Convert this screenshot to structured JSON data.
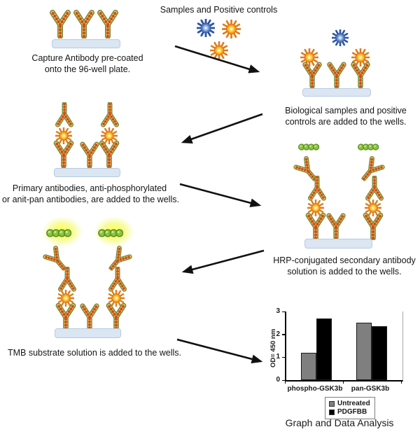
{
  "labels": {
    "samples_header": "Samples and Positive controls"
  },
  "steps": {
    "step1": {
      "line1": "Capture Antibody pre-coated",
      "line2": "onto the 96-well plate."
    },
    "step2": {
      "line1": "Biological samples and positive",
      "line2": "controls are added to the wells."
    },
    "step3": {
      "line1": "Primary antibodies, anti-phosphorylated",
      "line2": "or anit-pan antibodies, are added to the wells."
    },
    "step4": {
      "line1": "HRP-conjugated secondary antibody",
      "line2": "solution is added to the wells."
    },
    "step5": {
      "line1": "TMB substrate solution is added to the wells."
    }
  },
  "icons": {
    "antibody": "Y-shaped antibody (gold/orange beaded)",
    "antigen": "orange sun-burst antigen",
    "positive_control": "blue star antigen",
    "hrp_chain": "green bead chain (HRP enzyme)",
    "substrate_glow": "yellow glow (TMB colorimetric signal)",
    "plate": "96-well plate strip",
    "arrow": "black flow arrow"
  },
  "colors": {
    "plate_fill": "#dbe6f3",
    "plate_border": "#b7cbe2",
    "antibody_gold": "#e9c95e",
    "antibody_bead": "#c94f1d",
    "antibody_outline": "#7a8437",
    "antigen_orange": "#e8821e",
    "antigen_yellow": "#ffd34e",
    "control_blue": "#3a5fa8",
    "hrp_green": "#8bc53f",
    "arrow_black": "#111111"
  },
  "chart_data": {
    "type": "bar",
    "categories": [
      "phospho-GSK3b",
      "pan-GSK3b"
    ],
    "series": [
      {
        "name": "Untreated",
        "color": "#7f7f7f",
        "values": [
          1.2,
          2.5
        ]
      },
      {
        "name": "PDGFBB",
        "color": "#000000",
        "values": [
          2.7,
          2.35
        ]
      }
    ],
    "ylabel": "OD= 450 nm",
    "yticks": [
      0,
      1,
      2,
      3
    ],
    "ylim": [
      0,
      3
    ],
    "grid": false,
    "legend_position": "bottom",
    "title": "Graph and Data Analysis"
  }
}
